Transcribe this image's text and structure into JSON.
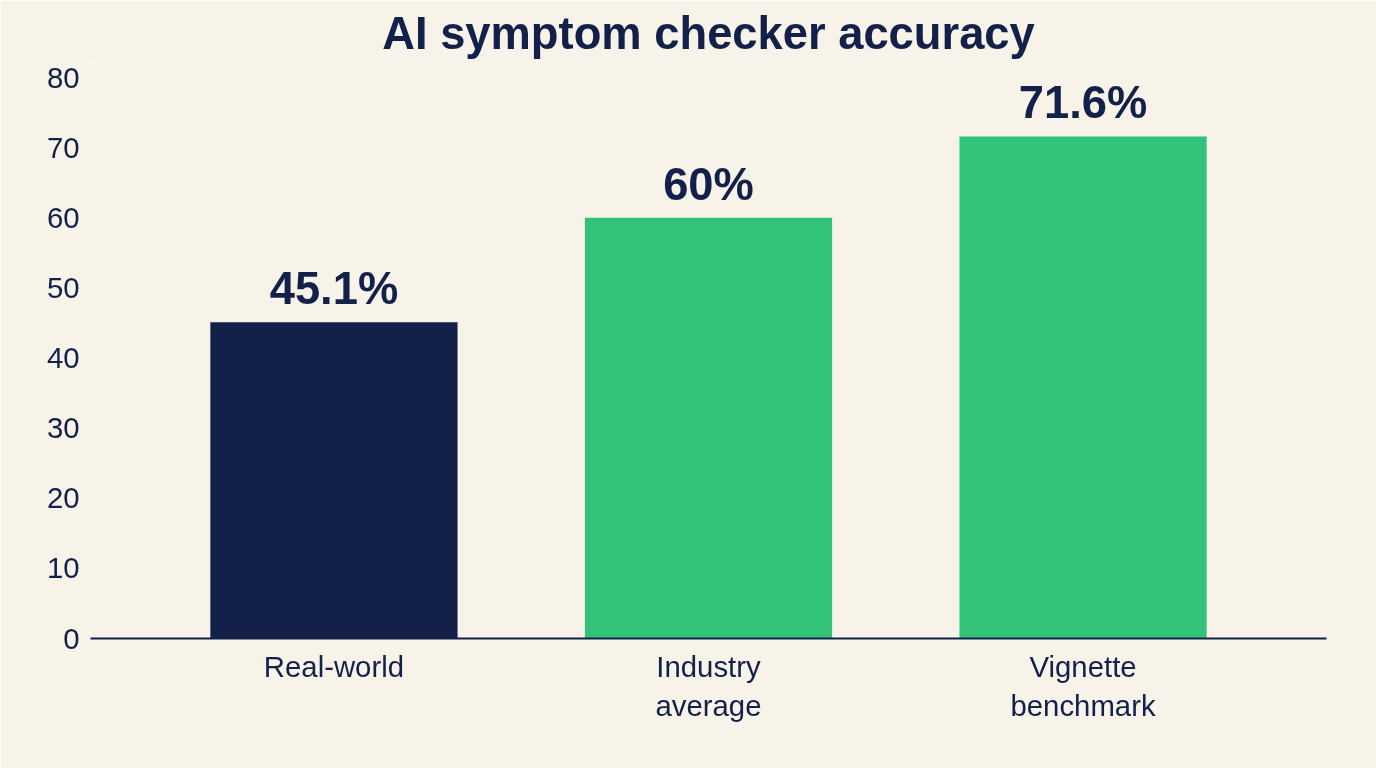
{
  "chart_data": {
    "type": "bar",
    "title": "AI symptom checker accuracy",
    "categories": [
      "Real-world",
      "Industry\naverage",
      "Vignette\nbenchmark"
    ],
    "values": [
      45.1,
      60,
      71.6
    ],
    "colors": [
      "#13214a",
      "#33c27a",
      "#33c27a"
    ],
    "value_labels": [
      "45.1%",
      "60%",
      "71.6%"
    ],
    "ylim": [
      0,
      82
    ],
    "yticks": [
      0,
      10,
      20,
      30,
      40,
      50,
      60,
      70,
      80
    ],
    "grid": false
  }
}
